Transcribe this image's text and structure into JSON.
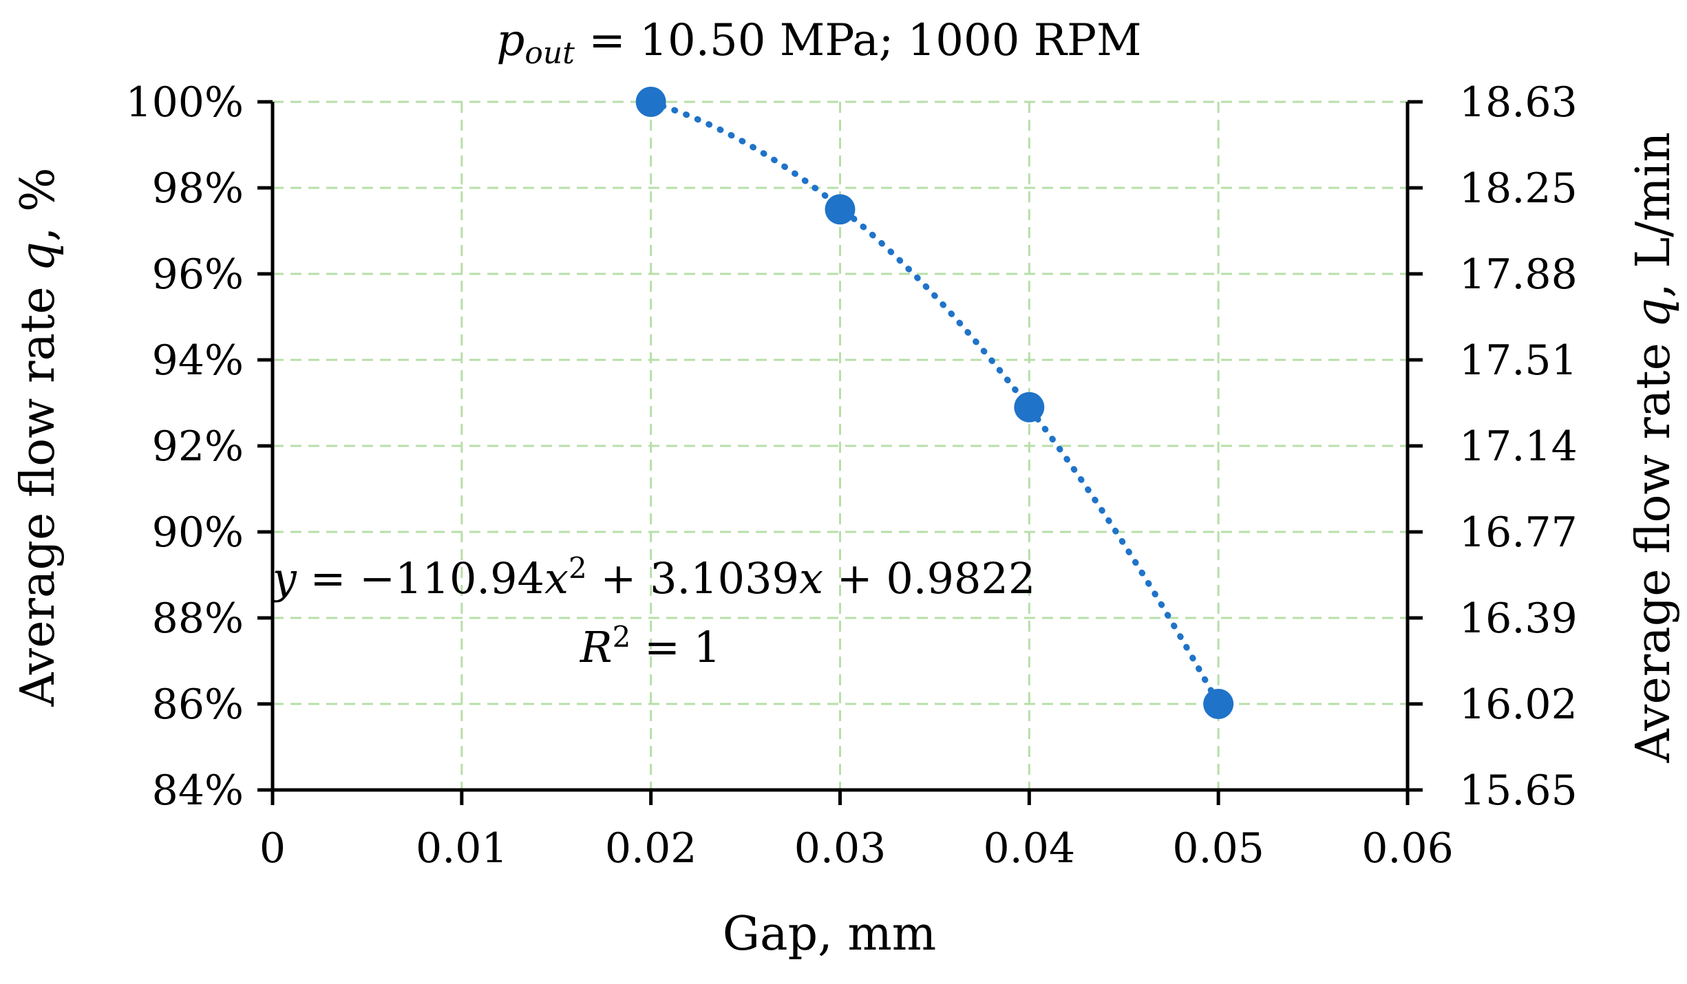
{
  "chart_data": {
    "type": "scatter",
    "title": "pout = 10.50 MPa; 1000 RPM",
    "title_parts": {
      "symbol": "p",
      "subscript": "out",
      "rest": " = 10.50 MPa; 1000 RPM"
    },
    "xlabel": "Gap, mm",
    "ylabel_left": "Average flow rate q, %",
    "ylabel_right": "Average flow rate q, L/min",
    "xlim": [
      0,
      0.06
    ],
    "ylim_left": [
      0.84,
      1.0
    ],
    "x_ticks": [
      "0",
      "0.01",
      "0.02",
      "0.03",
      "0.04",
      "0.05",
      "0.06"
    ],
    "y_left_ticks": [
      "84%",
      "86%",
      "88%",
      "90%",
      "92%",
      "94%",
      "96%",
      "98%",
      "100%"
    ],
    "y_right_ticks": [
      "15.65",
      "16.02",
      "16.39",
      "16.77",
      "17.14",
      "17.51",
      "17.88",
      "18.25",
      "18.63"
    ],
    "grid": true,
    "series": [
      {
        "x": [
          0.02,
          0.03,
          0.04,
          0.05
        ],
        "y": [
          1.0,
          0.975,
          0.929,
          0.86
        ],
        "color": "#1f73c8",
        "marker": "circle",
        "trendline": {
          "type": "polynomial",
          "order": 2,
          "coefficients": [
            -110.94,
            3.1039,
            0.9822
          ],
          "style": "dotted"
        }
      }
    ],
    "annotations": [
      "y = −110.94x² + 3.1039x + 0.9822",
      "R² = 1"
    ]
  }
}
